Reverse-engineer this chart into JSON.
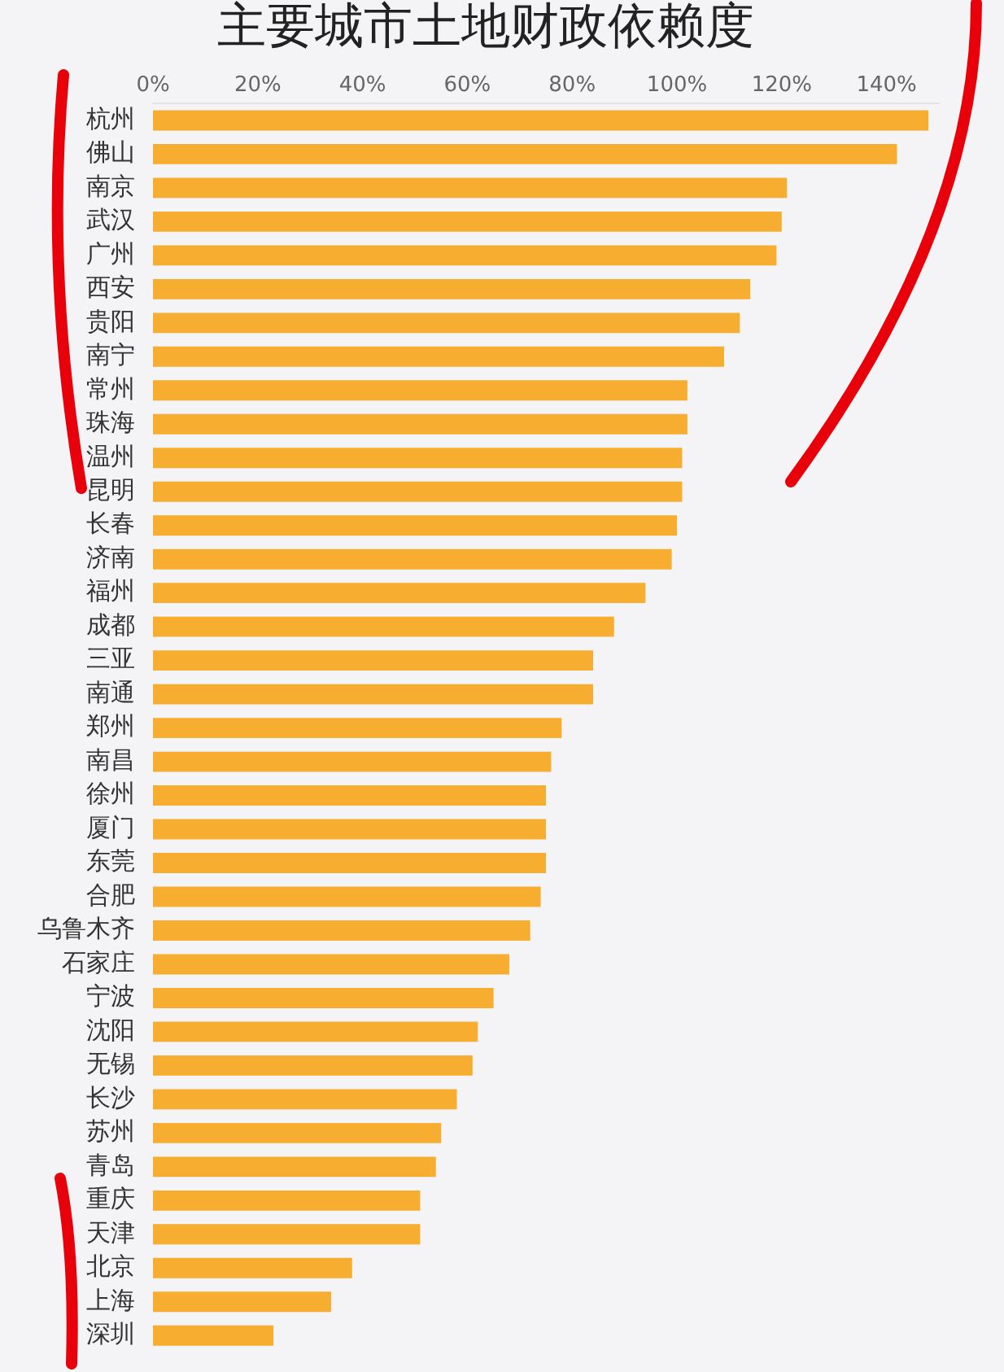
{
  "chart_data": {
    "type": "bar",
    "orientation": "horizontal",
    "title": "主要城市土地财政依赖度",
    "categories": [
      "杭州",
      "佛山",
      "南京",
      "武汉",
      "广州",
      "西安",
      "贵阳",
      "南宁",
      "常州",
      "珠海",
      "温州",
      "昆明",
      "长春",
      "济南",
      "福州",
      "成都",
      "三亚",
      "南通",
      "郑州",
      "南昌",
      "徐州",
      "厦门",
      "东莞",
      "合肥",
      "乌鲁木齐",
      "石家庄",
      "宁波",
      "沈阳",
      "无锡",
      "长沙",
      "苏州",
      "青岛",
      "重庆",
      "天津",
      "北京",
      "上海",
      "深圳"
    ],
    "values": [
      148,
      142,
      121,
      120,
      119,
      114,
      112,
      109,
      102,
      102,
      101,
      101,
      100,
      99,
      94,
      88,
      84,
      84,
      78,
      76,
      75,
      75,
      75,
      74,
      72,
      68,
      65,
      62,
      61,
      58,
      55,
      54,
      51,
      51,
      38,
      34,
      23
    ],
    "color": "#f7ad2f",
    "xlim": [
      0,
      150
    ],
    "xticks": [
      {
        "value": 0,
        "label": "0%"
      },
      {
        "value": 20,
        "label": "20%"
      },
      {
        "value": 40,
        "label": "40%"
      },
      {
        "value": 60,
        "label": "60%"
      },
      {
        "value": 80,
        "label": "80%"
      },
      {
        "value": 100,
        "label": "100%"
      },
      {
        "value": 120,
        "label": "120%"
      },
      {
        "value": 140,
        "label": "140%"
      }
    ],
    "grid": false,
    "legend": false
  }
}
